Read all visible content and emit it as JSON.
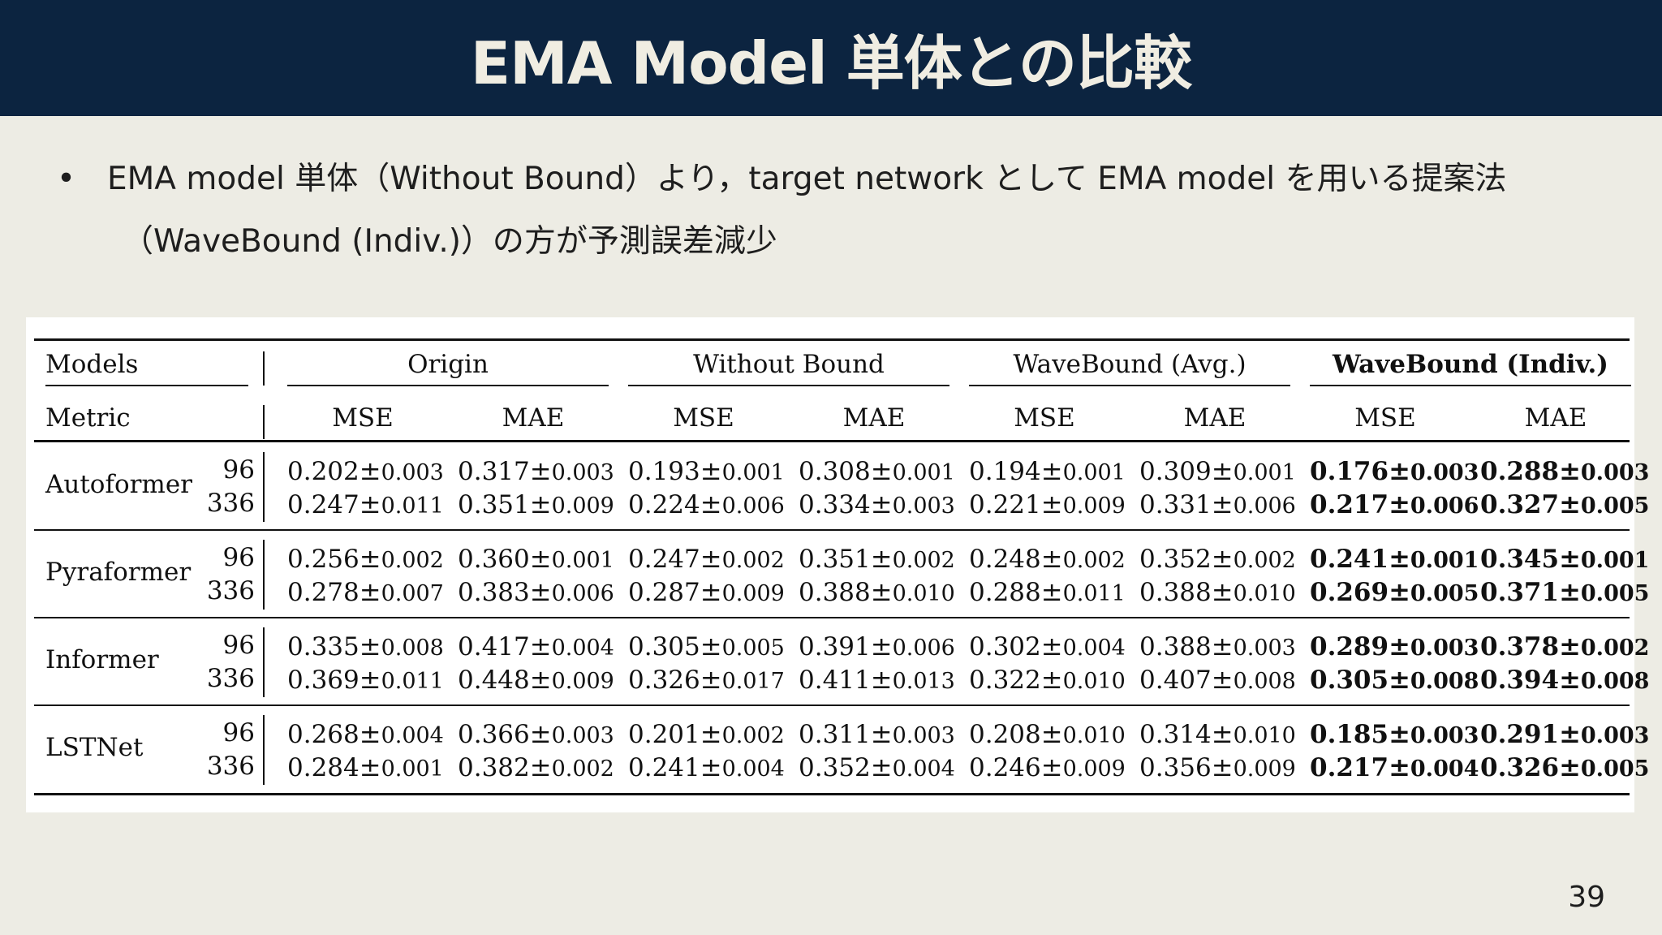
{
  "slide": {
    "title": "EMA Model 単体との比較",
    "bullet_line1": "EMA model 単体（Without Bound）より，target network として EMA model を用いる提案法",
    "bullet_line2": "（WaveBound (Indiv.)）の方が予測誤差減少",
    "page_number": "39"
  },
  "table": {
    "header_models": "Models",
    "header_metric": "Metric",
    "groups": [
      "Origin",
      "Without Bound",
      "WaveBound (Avg.)",
      "WaveBound (Indiv.)"
    ],
    "metrics": [
      "MSE",
      "MAE",
      "MSE",
      "MAE",
      "MSE",
      "MAE",
      "MSE",
      "MAE"
    ],
    "pm": "±",
    "bold_group_index": 3,
    "models": [
      {
        "name": "Autoformer",
        "rows": [
          {
            "horizon": "96",
            "cells": [
              [
                "0.202",
                "0.003"
              ],
              [
                "0.317",
                "0.003"
              ],
              [
                "0.193",
                "0.001"
              ],
              [
                "0.308",
                "0.001"
              ],
              [
                "0.194",
                "0.001"
              ],
              [
                "0.309",
                "0.001"
              ],
              [
                "0.176",
                "0.003"
              ],
              [
                "0.288",
                "0.003"
              ]
            ]
          },
          {
            "horizon": "336",
            "cells": [
              [
                "0.247",
                "0.011"
              ],
              [
                "0.351",
                "0.009"
              ],
              [
                "0.224",
                "0.006"
              ],
              [
                "0.334",
                "0.003"
              ],
              [
                "0.221",
                "0.009"
              ],
              [
                "0.331",
                "0.006"
              ],
              [
                "0.217",
                "0.006"
              ],
              [
                "0.327",
                "0.005"
              ]
            ]
          }
        ]
      },
      {
        "name": "Pyraformer",
        "rows": [
          {
            "horizon": "96",
            "cells": [
              [
                "0.256",
                "0.002"
              ],
              [
                "0.360",
                "0.001"
              ],
              [
                "0.247",
                "0.002"
              ],
              [
                "0.351",
                "0.002"
              ],
              [
                "0.248",
                "0.002"
              ],
              [
                "0.352",
                "0.002"
              ],
              [
                "0.241",
                "0.001"
              ],
              [
                "0.345",
                "0.001"
              ]
            ]
          },
          {
            "horizon": "336",
            "cells": [
              [
                "0.278",
                "0.007"
              ],
              [
                "0.383",
                "0.006"
              ],
              [
                "0.287",
                "0.009"
              ],
              [
                "0.388",
                "0.010"
              ],
              [
                "0.288",
                "0.011"
              ],
              [
                "0.388",
                "0.010"
              ],
              [
                "0.269",
                "0.005"
              ],
              [
                "0.371",
                "0.005"
              ]
            ]
          }
        ]
      },
      {
        "name": "Informer",
        "rows": [
          {
            "horizon": "96",
            "cells": [
              [
                "0.335",
                "0.008"
              ],
              [
                "0.417",
                "0.004"
              ],
              [
                "0.305",
                "0.005"
              ],
              [
                "0.391",
                "0.006"
              ],
              [
                "0.302",
                "0.004"
              ],
              [
                "0.388",
                "0.003"
              ],
              [
                "0.289",
                "0.003"
              ],
              [
                "0.378",
                "0.002"
              ]
            ]
          },
          {
            "horizon": "336",
            "cells": [
              [
                "0.369",
                "0.011"
              ],
              [
                "0.448",
                "0.009"
              ],
              [
                "0.326",
                "0.017"
              ],
              [
                "0.411",
                "0.013"
              ],
              [
                "0.322",
                "0.010"
              ],
              [
                "0.407",
                "0.008"
              ],
              [
                "0.305",
                "0.008"
              ],
              [
                "0.394",
                "0.008"
              ]
            ]
          }
        ]
      },
      {
        "name": "LSTNet",
        "rows": [
          {
            "horizon": "96",
            "cells": [
              [
                "0.268",
                "0.004"
              ],
              [
                "0.366",
                "0.003"
              ],
              [
                "0.201",
                "0.002"
              ],
              [
                "0.311",
                "0.003"
              ],
              [
                "0.208",
                "0.010"
              ],
              [
                "0.314",
                "0.010"
              ],
              [
                "0.185",
                "0.003"
              ],
              [
                "0.291",
                "0.003"
              ]
            ]
          },
          {
            "horizon": "336",
            "cells": [
              [
                "0.284",
                "0.001"
              ],
              [
                "0.382",
                "0.002"
              ],
              [
                "0.241",
                "0.004"
              ],
              [
                "0.352",
                "0.004"
              ],
              [
                "0.246",
                "0.009"
              ],
              [
                "0.356",
                "0.009"
              ],
              [
                "0.217",
                "0.004"
              ],
              [
                "0.326",
                "0.005"
              ]
            ]
          }
        ]
      }
    ]
  }
}
